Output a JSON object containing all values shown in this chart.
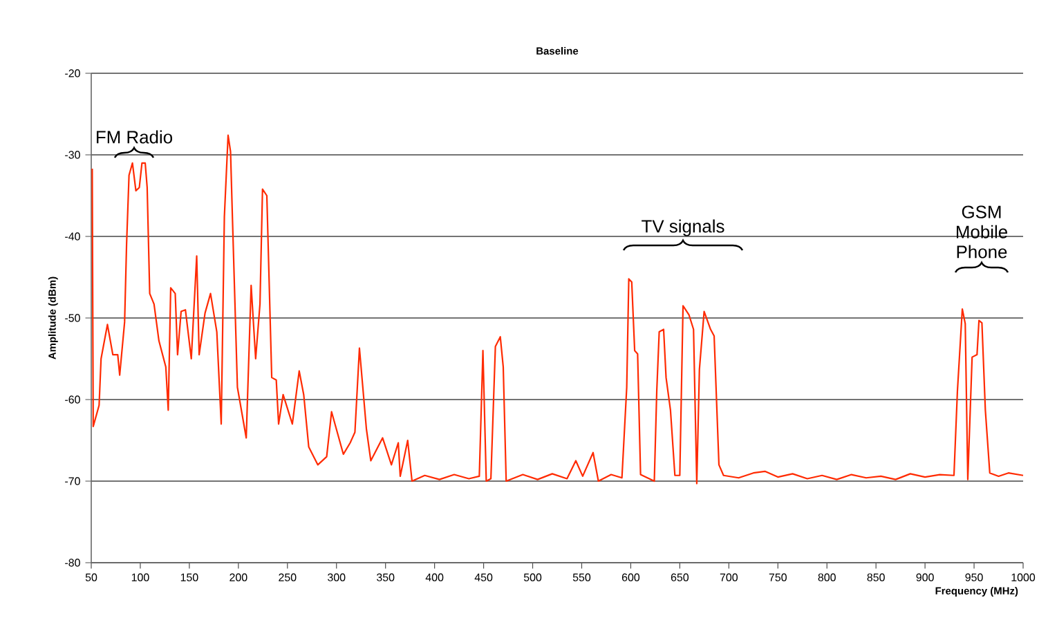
{
  "chart_data": {
    "type": "line",
    "title": "Baseline",
    "xlabel": "Frequency (MHz)",
    "ylabel": "Amplitude (dBm)",
    "xlim": [
      50,
      1000
    ],
    "ylim": [
      -80,
      -20
    ],
    "xticks": [
      50,
      100,
      150,
      200,
      250,
      300,
      350,
      400,
      450,
      500,
      550,
      600,
      650,
      700,
      750,
      800,
      850,
      900,
      950,
      1000
    ],
    "yticks": [
      -80,
      -70,
      -60,
      -50,
      -40,
      -30,
      -20
    ],
    "grid": "y",
    "annotations": [
      "FM Radio",
      "TV signals",
      "GSM Mobile Phone"
    ],
    "series": [
      {
        "color": "#ff2a00",
        "x": [
          51,
          52,
          58,
          60,
          66.5,
          72,
          77,
          79,
          84,
          86,
          88.5,
          92,
          95.5,
          99,
          101.7,
          105,
          107,
          109.6,
          114,
          119,
          126,
          128.5,
          131,
          135.6,
          138,
          141.6,
          146,
          152,
          157.5,
          160,
          166,
          171.6,
          178,
          182.5,
          185.7,
          189.5,
          192,
          194,
          199,
          208,
          213,
          217.6,
          222,
          224.6,
          229,
          234,
          238.6,
          241,
          245.6,
          255,
          262,
          266.6,
          271.7,
          281,
          290,
          295,
          307,
          314,
          318.8,
          323.4,
          330.5,
          335,
          347,
          356,
          363,
          365,
          372.6,
          377,
          390,
          405,
          420,
          435,
          445.6,
          449.3,
          452.7,
          457.4,
          462,
          467,
          470,
          473,
          490,
          505,
          520,
          535,
          544,
          551,
          561.6,
          567,
          580,
          591,
          595.9,
          598,
          601,
          604,
          607,
          610,
          624,
          626.5,
          629,
          633.5,
          636,
          640.5,
          645,
          650,
          653.3,
          659.3,
          664,
          667.3,
          670,
          674.8,
          681.4,
          685,
          689.9,
          694.6,
          710,
          725,
          736.8,
          750,
          765,
          780,
          795,
          810,
          825,
          840,
          855,
          870,
          885,
          900,
          915,
          929.5,
          933,
          938,
          941,
          943.6,
          948,
          953,
          955,
          958,
          961.5,
          966,
          975,
          985,
          1000
        ],
        "values": [
          -31.7,
          -63.3,
          -60.7,
          -55,
          -50.8,
          -54.5,
          -54.5,
          -57,
          -50.5,
          -41,
          -32.5,
          -31,
          -34.4,
          -34,
          -31,
          -31,
          -34,
          -47,
          -48.3,
          -52.8,
          -56,
          -61.3,
          -46.3,
          -47,
          -54.5,
          -49.2,
          -49,
          -55,
          -42.4,
          -54.5,
          -49.4,
          -47,
          -51.7,
          -63,
          -37.6,
          -27.6,
          -29.6,
          -38,
          -58.5,
          -64.7,
          -46,
          -55,
          -48.3,
          -34.2,
          -35,
          -57.3,
          -57.6,
          -63,
          -59.4,
          -63,
          -56.5,
          -59.4,
          -65.8,
          -68,
          -67,
          -61.5,
          -66.7,
          -65.3,
          -64,
          -53.7,
          -63.6,
          -67.5,
          -64.7,
          -68,
          -65.3,
          -69.4,
          -65,
          -70,
          -69.3,
          -69.8,
          -69.2,
          -69.7,
          -69.4,
          -54,
          -70,
          -69.7,
          -53.5,
          -52.3,
          -56,
          -70,
          -69.2,
          -69.8,
          -69.1,
          -69.7,
          -67.5,
          -69.4,
          -66.5,
          -70,
          -69.2,
          -69.6,
          -58.5,
          -45.2,
          -45.6,
          -54,
          -54.4,
          -69.2,
          -70,
          -59,
          -51.7,
          -51.4,
          -57.3,
          -61.3,
          -69.3,
          -69.3,
          -48.5,
          -49.6,
          -51.4,
          -70.3,
          -56.3,
          -49.2,
          -51.4,
          -52.2,
          -68,
          -69.3,
          -69.6,
          -69,
          -68.8,
          -69.5,
          -69.1,
          -69.7,
          -69.3,
          -69.8,
          -69.2,
          -69.6,
          -69.4,
          -69.8,
          -69.1,
          -69.5,
          -69.2,
          -69.3,
          -59,
          -48.9,
          -50.7,
          -69.8,
          -54.8,
          -54.5,
          -50.3,
          -50.6,
          -61.3,
          -69,
          -69.4,
          -69,
          -69.3
        ]
      }
    ]
  }
}
